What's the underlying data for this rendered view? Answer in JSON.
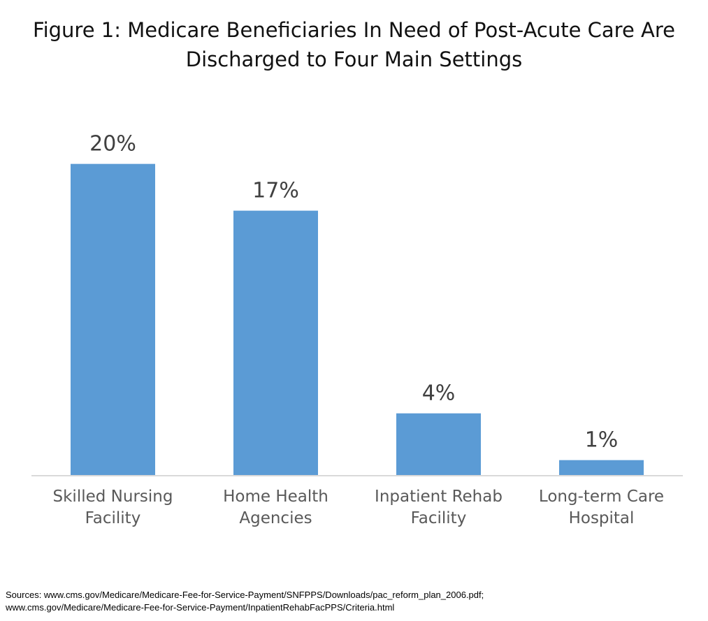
{
  "chart_data": {
    "type": "bar",
    "title_lines": [
      "Figure 1: Medicare Beneficiaries In Need of Post-Acute Care Are",
      "Discharged to Four Main Settings"
    ],
    "categories": [
      [
        "Skilled Nursing",
        "Facility"
      ],
      [
        "Home Health",
        "Agencies"
      ],
      [
        "Inpatient  Rehab",
        "Facility"
      ],
      [
        "Long-term Care",
        "Hospital"
      ]
    ],
    "values": [
      20,
      17,
      4,
      1
    ],
    "data_labels": [
      "20%",
      "17%",
      "4%",
      "1%"
    ],
    "value_unit": "%",
    "ylim": [
      0,
      22
    ],
    "xlabel": "",
    "ylabel": "",
    "grid": false,
    "legend": "none",
    "bar_color": "#5b9bd5",
    "axis_color": "#d9d9d9"
  },
  "sources": [
    "Sources: www.cms.gov/Medicare/Medicare-Fee-for-Service-Payment/SNFPPS/Downloads/pac_reform_plan_2006.pdf;",
    "www.cms.gov/Medicare/Medicare-Fee-for-Service-Payment/InpatientRehabFacPPS/Criteria.html"
  ]
}
